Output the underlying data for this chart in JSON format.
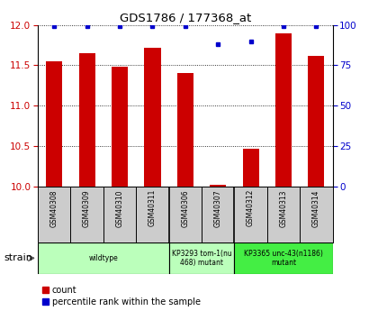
{
  "title": "GDS1786 / 177368_at",
  "samples": [
    "GSM40308",
    "GSM40309",
    "GSM40310",
    "GSM40311",
    "GSM40306",
    "GSM40307",
    "GSM40312",
    "GSM40313",
    "GSM40314"
  ],
  "count_values": [
    11.55,
    11.65,
    11.48,
    11.72,
    11.4,
    10.02,
    10.47,
    11.9,
    11.62
  ],
  "percentile_values": [
    99,
    99,
    99,
    99,
    99,
    88,
    90,
    99,
    99
  ],
  "ylim_left": [
    10,
    12
  ],
  "ylim_right": [
    0,
    100
  ],
  "yticks_left": [
    10,
    10.5,
    11,
    11.5,
    12
  ],
  "yticks_right": [
    0,
    25,
    50,
    75,
    100
  ],
  "group_configs": [
    {
      "start": 0,
      "end": 3,
      "color": "#bbffbb",
      "label": "wildtype"
    },
    {
      "start": 4,
      "end": 5,
      "color": "#bbffbb",
      "label": "KP3293 tom-1(nu\n468) mutant"
    },
    {
      "start": 6,
      "end": 8,
      "color": "#44ee44",
      "label": "KP3365 unc-43(n1186)\nmutant"
    }
  ],
  "bar_color": "#cc0000",
  "dot_color": "#0000cc",
  "bg_color": "#ffffff",
  "tick_color_left": "#cc0000",
  "tick_color_right": "#0000cc",
  "sample_bg": "#cccccc",
  "legend_count_color": "#cc0000",
  "legend_pct_color": "#0000cc"
}
